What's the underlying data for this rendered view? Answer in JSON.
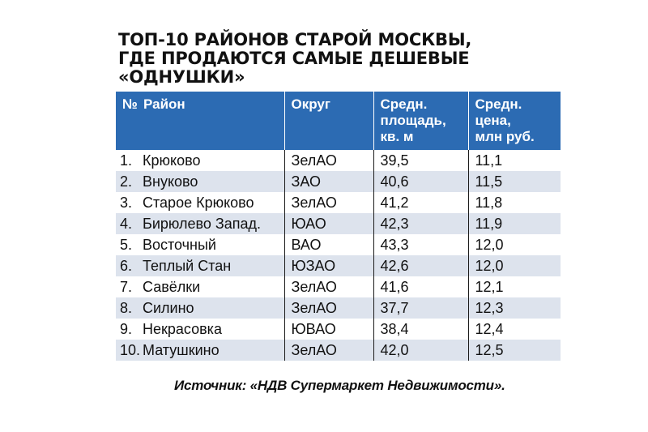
{
  "title": {
    "line1": "ТОП-10 РАЙОНОВ СТАРОЙ МОСКВЫ,",
    "line2": "ГДЕ ПРОДАЮТСЯ САМЫЕ ДЕШЕВЫЕ",
    "line3": "«ОДНУШКИ»"
  },
  "table": {
    "headers": {
      "num": "№",
      "district": "Район",
      "okrug": "Округ",
      "area_line1": "Средн.",
      "area_line2": "площадь,",
      "area_line3": "кв. м",
      "price_line1": "Средн.",
      "price_line2": "цена,",
      "price_line3": "млн руб."
    },
    "rows": [
      {
        "num": "1.",
        "district": "Крюково",
        "okrug": "ЗелАО",
        "area": "39,5",
        "price": "11,1"
      },
      {
        "num": "2.",
        "district": "Внуково",
        "okrug": "ЗАО",
        "area": "40,6",
        "price": "11,5"
      },
      {
        "num": "3.",
        "district": "Старое Крюково",
        "okrug": "ЗелАО",
        "area": "41,2",
        "price": "11,8"
      },
      {
        "num": "4.",
        "district": "Бирюлево Запад.",
        "okrug": "ЮАО",
        "area": "42,3",
        "price": "11,9"
      },
      {
        "num": "5.",
        "district": "Восточный",
        "okrug": "ВАО",
        "area": "43,3",
        "price": "12,0"
      },
      {
        "num": "6.",
        "district": "Теплый Стан",
        "okrug": "ЮЗАО",
        "area": "42,6",
        "price": "12,0"
      },
      {
        "num": "7.",
        "district": "Савёлки",
        "okrug": "ЗелАО",
        "area": "41,6",
        "price": "12,1"
      },
      {
        "num": "8.",
        "district": "Силино",
        "okrug": "ЗелАО",
        "area": "37,7",
        "price": "12,3"
      },
      {
        "num": "9.",
        "district": "Некрасовка",
        "okrug": "ЮВАО",
        "area": "38,4",
        "price": "12,4"
      },
      {
        "num": "10.",
        "district": "Матушкино",
        "okrug": "ЗелАО",
        "area": "42,0",
        "price": "12,5"
      }
    ]
  },
  "source": "Источник: «НДВ Супермаркет Недвижимости».",
  "colors": {
    "header_bg": "#2c6bb3",
    "stripe_bg": "#dde3ed"
  }
}
